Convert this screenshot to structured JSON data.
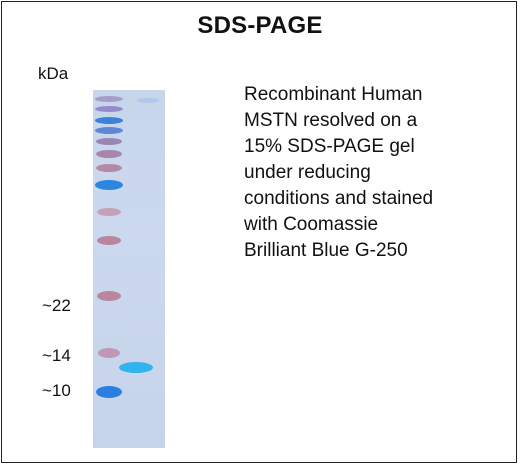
{
  "figure": {
    "title": "SDS-PAGE",
    "unit_label": "kDa",
    "markers": [
      "~22",
      "~14",
      "~10"
    ],
    "caption_lines": [
      "Recombinant Human",
      "MSTN resolved on a",
      "15% SDS-PAGE gel",
      "under reducing",
      "conditions and stained",
      "with Coomassie",
      "Brilliant Blue G-250"
    ],
    "colors": {
      "gel_background": "#c8d6ec",
      "ladder_band_pink": "#b8879e",
      "ladder_band_blue": "#2a86e0",
      "sample_band": "#2fb4ee",
      "frame": "#222222"
    }
  }
}
